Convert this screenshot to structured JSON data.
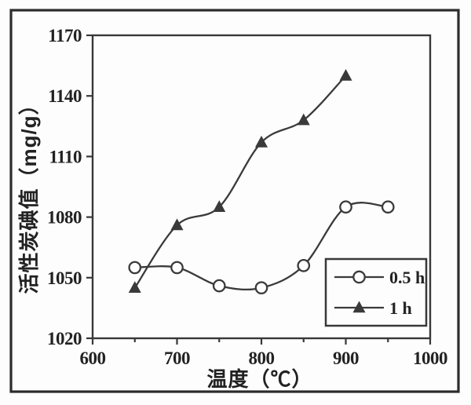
{
  "figure": {
    "background": "#fdfdfd",
    "frame_color": "#2c2c2c",
    "axis_color": "#383838",
    "line_color": "#3a3a3a",
    "text_color": "#222222"
  },
  "chart_data": {
    "type": "line",
    "title": "",
    "xlabel": "温度（℃）",
    "ylabel": "活性炭碘值（mg/g）",
    "xlim": [
      600,
      1000
    ],
    "ylim": [
      1020,
      1170
    ],
    "x_major_ticks": [
      600,
      700,
      800,
      900,
      1000
    ],
    "x_minor_ticks": [
      650,
      750,
      850,
      950
    ],
    "y_ticks": [
      1170,
      1140,
      1110,
      1080,
      1050,
      1020
    ],
    "grid": false,
    "legend_position": "inside lower right",
    "series": [
      {
        "name": "0.5 h",
        "marker": "open-circle",
        "x": [
          650,
          700,
          750,
          800,
          850,
          900,
          950
        ],
        "values": [
          1055,
          1055,
          1046,
          1045,
          1056,
          1085,
          1085
        ]
      },
      {
        "name": "1 h",
        "marker": "filled-triangle",
        "x": [
          650,
          700,
          750,
          800,
          850,
          900
        ],
        "values": [
          1045,
          1076,
          1085,
          1117,
          1128,
          1150
        ]
      }
    ]
  }
}
